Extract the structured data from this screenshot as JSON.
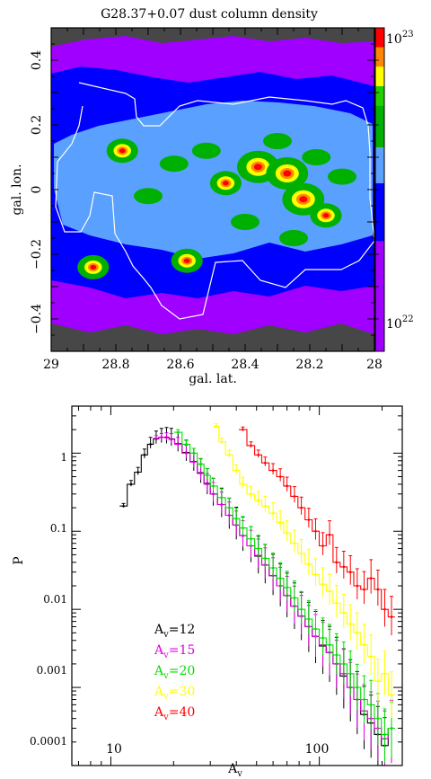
{
  "chart_data": [
    {
      "type": "heatmap",
      "title": "G28.37+0.07 dust column density",
      "xlabel": "gal. lat.",
      "ylabel": "gal. lon.",
      "xlim": [
        29,
        28
      ],
      "ylim": [
        -0.5,
        0.5
      ],
      "x_ticks": [
        "29",
        "28.8",
        "28.6",
        "28.4",
        "28.2",
        "28"
      ],
      "y_ticks": [
        "0.4",
        "0.2",
        "0",
        "−0.2",
        "−0.4"
      ],
      "colorbar": {
        "scale": "log",
        "range": [
          1e+22,
          1e+23
        ],
        "labels": [
          {
            "base": "10",
            "exp": "23",
            "value": 1e+23
          },
          {
            "base": "10",
            "exp": "22",
            "value": 1e+22
          }
        ],
        "colors": [
          "#a000ff",
          "#0000ff",
          "#5aa0ff",
          "#00b000",
          "#ffff00",
          "#ff8800",
          "#ff0000"
        ]
      },
      "contour_color": "#ffffff",
      "peaks": [
        {
          "x": 28.36,
          "y": 0.07
        },
        {
          "x": 28.27,
          "y": 0.05
        },
        {
          "x": 28.22,
          "y": -0.03
        },
        {
          "x": 28.58,
          "y": -0.22
        },
        {
          "x": 28.87,
          "y": -0.24
        },
        {
          "x": 28.78,
          "y": 0.12
        },
        {
          "x": 28.46,
          "y": 0.02
        },
        {
          "x": 28.15,
          "y": -0.08
        }
      ]
    },
    {
      "type": "line",
      "xlabel": {
        "base": "A",
        "sub": "v"
      },
      "ylabel": "P",
      "xscale": "log",
      "yscale": "log",
      "xlim": [
        6.5,
        250
      ],
      "ylim": [
        0.0001,
        4
      ],
      "x_ticks": [
        "10",
        "100"
      ],
      "y_ticks": [
        "1",
        "0.1",
        "0.01",
        "0.001",
        "0.0001"
      ],
      "legend_position": "bottom-left",
      "series": [
        {
          "name": {
            "base": "A",
            "sub": "v",
            "rest": "=12"
          },
          "color": "#000000",
          "x": [
            11.5,
            12.5,
            13.5,
            14.5,
            15.5,
            16.5,
            17.5,
            18.5,
            19.5,
            21,
            23,
            25,
            27,
            29,
            31,
            34,
            37,
            40,
            43,
            47,
            51,
            55,
            60,
            65,
            70,
            76,
            82,
            89,
            96,
            104,
            112,
            121,
            131,
            141,
            152,
            164,
            177,
            191,
            206,
            222
          ],
          "y": [
            0.21,
            0.4,
            0.57,
            0.95,
            1.3,
            1.52,
            1.6,
            1.6,
            1.52,
            1.32,
            1.02,
            0.78,
            0.56,
            0.41,
            0.3,
            0.22,
            0.16,
            0.12,
            0.088,
            0.065,
            0.048,
            0.037,
            0.027,
            0.02,
            0.015,
            0.011,
            0.0082,
            0.006,
            0.0045,
            0.0034,
            0.0028,
            0.002,
            0.0014,
            0.001,
            0.0007,
            0.00045,
            0.00035,
            0.00025,
            0.00018,
            0.0003
          ]
        },
        {
          "name": {
            "base": "A",
            "sub": "v",
            "rest": "=15"
          },
          "color": "#e000e0",
          "x": [
            16.5,
            17.5,
            18.5,
            19.5,
            21,
            23,
            25,
            27,
            29,
            31,
            34,
            37,
            40,
            43,
            47,
            51,
            55,
            60,
            65,
            70,
            76,
            82,
            89,
            96,
            104,
            112,
            121,
            131,
            141,
            152,
            164,
            177,
            191,
            206,
            222
          ],
          "y": [
            1.55,
            1.6,
            1.58,
            1.5,
            1.3,
            1.0,
            0.77,
            0.55,
            0.4,
            0.3,
            0.22,
            0.16,
            0.12,
            0.088,
            0.065,
            0.049,
            0.037,
            0.027,
            0.02,
            0.015,
            0.011,
            0.0082,
            0.006,
            0.0045,
            0.0035,
            0.0028,
            0.002,
            0.0015,
            0.001,
            0.0007,
            0.0005,
            0.0004,
            0.0003,
            0.00022,
            0.0003
          ]
        },
        {
          "name": {
            "base": "A",
            "sub": "v",
            "rest": "=20"
          },
          "color": "#00e000",
          "x": [
            21,
            23,
            25,
            27,
            29,
            31,
            34,
            37,
            40,
            43,
            47,
            51,
            55,
            60,
            65,
            70,
            76,
            82,
            89,
            96,
            104,
            112,
            121,
            131,
            141,
            152,
            164,
            177,
            191,
            206,
            222
          ],
          "y": [
            1.85,
            1.3,
            1.0,
            0.72,
            0.52,
            0.38,
            0.27,
            0.2,
            0.145,
            0.11,
            0.08,
            0.06,
            0.045,
            0.034,
            0.025,
            0.019,
            0.014,
            0.01,
            0.0075,
            0.0056,
            0.0043,
            0.0035,
            0.0026,
            0.002,
            0.0015,
            0.001,
            0.0007,
            0.0006,
            0.0004,
            0.00025,
            0.0003
          ]
        },
        {
          "name": {
            "base": "A",
            "sub": "v",
            "rest": "=30"
          },
          "color": "#ffff00",
          "x": [
            32,
            34,
            37,
            40,
            43,
            47,
            51,
            55,
            60,
            65,
            70,
            76,
            82,
            89,
            96,
            104,
            112,
            121,
            131,
            141,
            152,
            164,
            177,
            191,
            206,
            222
          ],
          "y": [
            2.2,
            1.4,
            0.95,
            0.6,
            0.4,
            0.3,
            0.25,
            0.21,
            0.17,
            0.13,
            0.095,
            0.07,
            0.052,
            0.038,
            0.028,
            0.021,
            0.017,
            0.012,
            0.009,
            0.0065,
            0.005,
            0.0035,
            0.0025,
            0.0012,
            0.0015,
            0.0008
          ]
        },
        {
          "name": {
            "base": "A",
            "sub": "v",
            "rest": "=40"
          },
          "color": "#ff0000",
          "x": [
            43,
            47,
            51,
            55,
            60,
            65,
            70,
            76,
            82,
            89,
            96,
            104,
            112,
            121,
            131,
            141,
            152,
            164,
            177,
            191,
            206,
            222
          ],
          "y": [
            2.0,
            1.25,
            0.95,
            0.75,
            0.6,
            0.5,
            0.38,
            0.28,
            0.2,
            0.14,
            0.1,
            0.065,
            0.09,
            0.04,
            0.035,
            0.03,
            0.02,
            0.018,
            0.025,
            0.018,
            0.01,
            0.008
          ]
        }
      ]
    }
  ]
}
